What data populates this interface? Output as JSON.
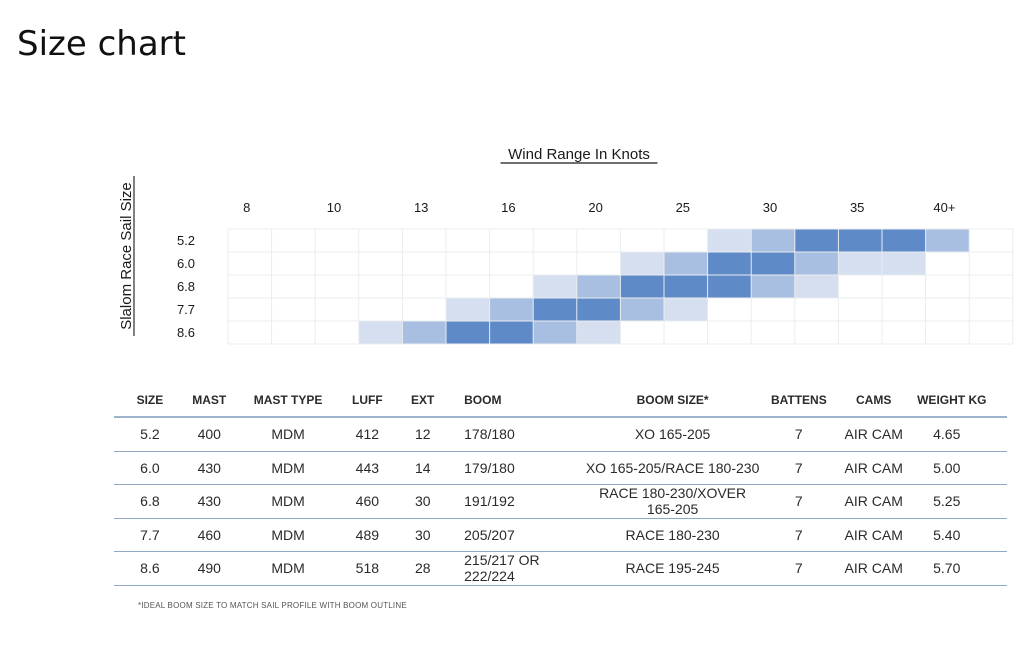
{
  "page": {
    "title": "Size chart"
  },
  "chart_data": {
    "type": "heatmap",
    "title": "Wind Range In Knots",
    "ylabel": "Slalom Race Sail Size",
    "x_tick_labels": [
      "8",
      "10",
      "13",
      "16",
      "20",
      "25",
      "30",
      "35",
      "40+"
    ],
    "rows": [
      "5.2",
      "6.0",
      "6.8",
      "7.7",
      "8.6"
    ],
    "num_columns": 18,
    "intensity_scale": "0 = empty, 1 = light, 2 = medium, 3 = dark",
    "cells": [
      [
        0,
        0,
        0,
        0,
        0,
        0,
        0,
        0,
        0,
        0,
        0,
        1,
        2,
        3,
        3,
        3,
        2,
        0
      ],
      [
        0,
        0,
        0,
        0,
        0,
        0,
        0,
        0,
        0,
        1,
        2,
        3,
        3,
        2,
        1,
        1,
        0,
        0
      ],
      [
        0,
        0,
        0,
        0,
        0,
        0,
        0,
        1,
        2,
        3,
        3,
        3,
        2,
        1,
        0,
        0,
        0,
        0
      ],
      [
        0,
        0,
        0,
        0,
        0,
        1,
        2,
        3,
        3,
        2,
        1,
        0,
        0,
        0,
        0,
        0,
        0,
        0
      ],
      [
        0,
        0,
        0,
        1,
        2,
        3,
        3,
        2,
        1,
        0,
        0,
        0,
        0,
        0,
        0,
        0,
        0,
        0
      ]
    ],
    "colors": {
      "0": "#ffffff",
      "1": "#d5dff0",
      "2": "#a9bfe2",
      "3": "#5f8ac8"
    }
  },
  "table": {
    "headers": [
      "SIZE",
      "MAST",
      "MAST TYPE",
      "LUFF",
      "EXT",
      "BOOM",
      "BOOM SIZE*",
      "BATTENS",
      "CAMS",
      "WEIGHT KG"
    ],
    "rows": [
      [
        "5.2",
        "400",
        "MDM",
        "412",
        "12",
        "178/180",
        "XO 165-205",
        "7",
        "AIR CAM",
        "4.65"
      ],
      [
        "6.0",
        "430",
        "MDM",
        "443",
        "14",
        "179/180",
        "XO 165-205/RACE 180-230",
        "7",
        "AIR CAM",
        "5.00"
      ],
      [
        "6.8",
        "430",
        "MDM",
        "460",
        "30",
        "191/192",
        "RACE 180-230/XOVER 165-205",
        "7",
        "AIR CAM",
        "5.25"
      ],
      [
        "7.7",
        "460",
        "MDM",
        "489",
        "30",
        "205/207",
        "RACE 180-230",
        "7",
        "AIR CAM",
        "5.40"
      ],
      [
        "8.6",
        "490",
        "MDM",
        "518",
        "28",
        "215/217 OR 222/224",
        "RACE 195-245",
        "7",
        "AIR CAM",
        "5.70"
      ]
    ]
  },
  "footnote": "*IDEAL BOOM SIZE TO MATCH SAIL PROFILE WITH BOOM OUTLINE"
}
